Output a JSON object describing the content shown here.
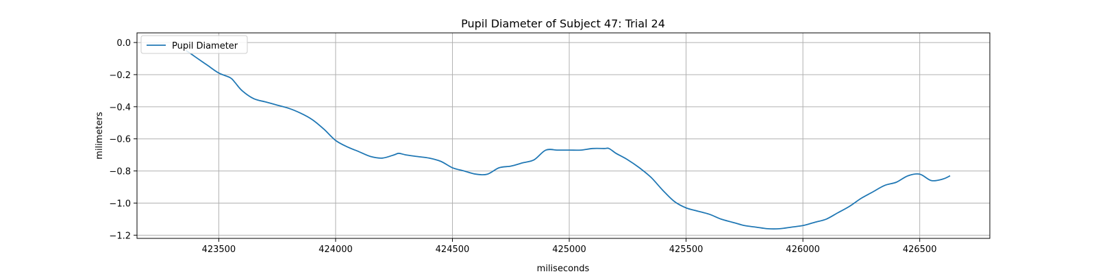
{
  "chart_data": {
    "type": "line",
    "title": "Pupil Diameter of Subject 47: Trial 24",
    "xlabel": "miliseconds",
    "ylabel": "milimeters",
    "xlim": [
      423150,
      426800
    ],
    "ylim": [
      -1.22,
      0.06
    ],
    "xticks": [
      423500,
      424000,
      424500,
      425000,
      425500,
      426000,
      426500
    ],
    "yticks": [
      0.0,
      -0.2,
      -0.4,
      -0.6,
      -0.8,
      -1.0,
      -1.2
    ],
    "ytick_labels": [
      "0.0",
      "−0.2",
      "−0.4",
      "−0.6",
      "−0.8",
      "−1.0",
      "−1.2"
    ],
    "grid": true,
    "legend_position": "upper left",
    "series": [
      {
        "name": "Pupil Diameter",
        "color": "#1f77b4",
        "x": [
          423360,
          423400,
          423450,
          423500,
          423550,
          423570,
          423600,
          423650,
          423700,
          423750,
          423800,
          423850,
          423900,
          423950,
          424000,
          424050,
          424100,
          424150,
          424200,
          424250,
          424270,
          424300,
          424350,
          424400,
          424450,
          424500,
          424550,
          424600,
          424650,
          424700,
          424750,
          424800,
          424850,
          424900,
          424950,
          425000,
          425050,
          425100,
          425150,
          425170,
          425200,
          425250,
          425300,
          425350,
          425400,
          425450,
          425500,
          425550,
          425600,
          425650,
          425700,
          425750,
          425800,
          425850,
          425900,
          425950,
          426000,
          426050,
          426100,
          426150,
          426200,
          426250,
          426300,
          426350,
          426400,
          426450,
          426500,
          426550,
          426600,
          426630
        ],
        "values": [
          -0.05,
          -0.09,
          -0.14,
          -0.19,
          -0.22,
          -0.25,
          -0.3,
          -0.35,
          -0.37,
          -0.39,
          -0.41,
          -0.44,
          -0.48,
          -0.54,
          -0.61,
          -0.65,
          -0.68,
          -0.71,
          -0.72,
          -0.7,
          -0.69,
          -0.7,
          -0.71,
          -0.72,
          -0.74,
          -0.78,
          -0.8,
          -0.82,
          -0.82,
          -0.78,
          -0.77,
          -0.75,
          -0.73,
          -0.67,
          -0.67,
          -0.67,
          -0.67,
          -0.66,
          -0.66,
          -0.66,
          -0.69,
          -0.73,
          -0.78,
          -0.84,
          -0.92,
          -0.99,
          -1.03,
          -1.05,
          -1.07,
          -1.1,
          -1.12,
          -1.14,
          -1.15,
          -1.16,
          -1.16,
          -1.15,
          -1.14,
          -1.12,
          -1.1,
          -1.06,
          -1.02,
          -0.97,
          -0.93,
          -0.89,
          -0.87,
          -0.83,
          -0.82,
          -0.86,
          -0.85,
          -0.83
        ]
      }
    ]
  }
}
